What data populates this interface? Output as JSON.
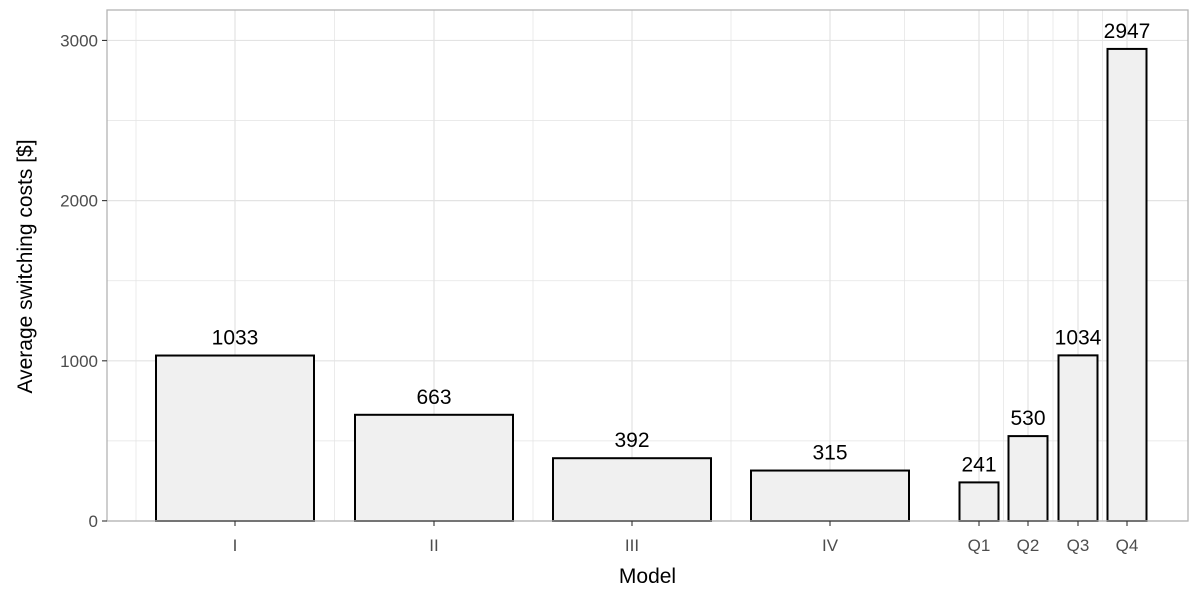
{
  "chart_data": {
    "type": "bar",
    "categories": [
      "I",
      "II",
      "III",
      "IV",
      "Q1",
      "Q2",
      "Q3",
      "Q4"
    ],
    "values": [
      1033,
      663,
      392,
      315,
      241,
      530,
      1034,
      2947
    ],
    "data_labels": [
      "1033",
      "663",
      "392",
      "315",
      "241",
      "530",
      "1034",
      "2947"
    ],
    "xlabel": "Model",
    "ylabel": "Average switching costs [$]",
    "ylim": [
      0,
      3000
    ],
    "yticks": [
      0,
      1000,
      2000,
      3000
    ],
    "ytick_labels": [
      "0",
      "1000",
      "2000",
      "3000"
    ],
    "grid": true,
    "colors": {
      "bar_fill": "#f0f0f0",
      "bar_stroke": "#000000",
      "grid": "#e3e3e3",
      "panel_border": "#b3b3b3",
      "tick_text": "#4d4d4d"
    }
  }
}
